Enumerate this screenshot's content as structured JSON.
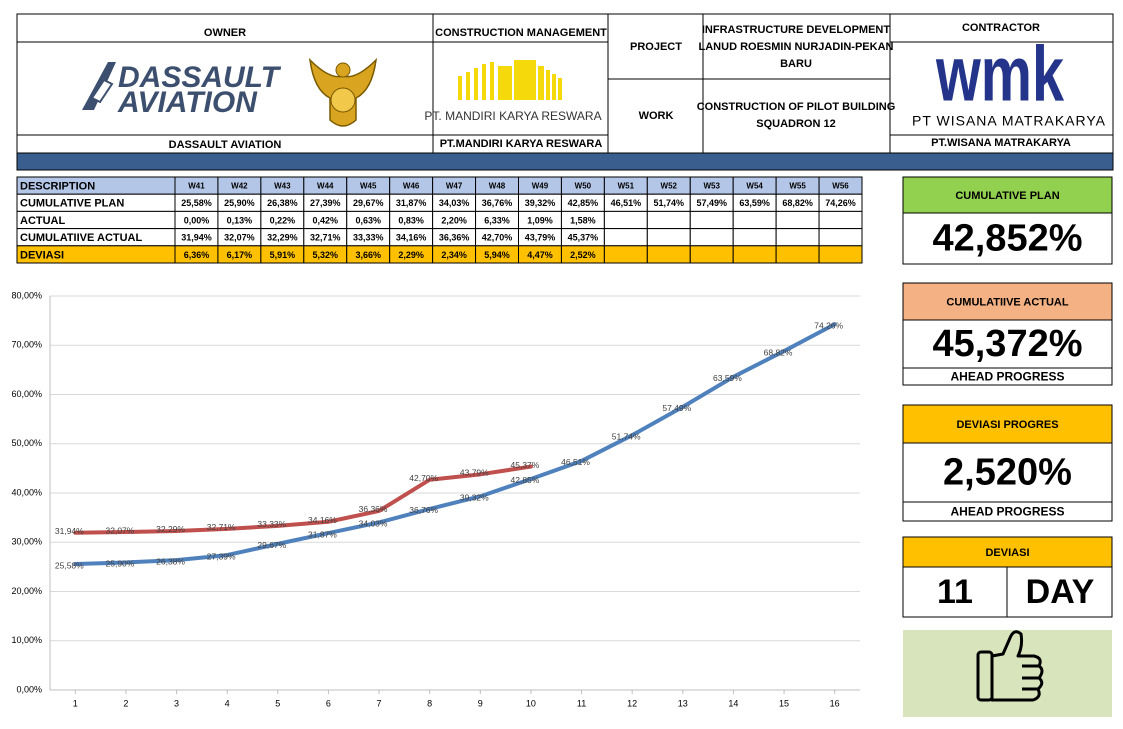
{
  "header": {
    "owner_label": "OWNER",
    "owner_logo": [
      "DASSAULT",
      "AVIATION"
    ],
    "owner_name": "DASSAULT AVIATION",
    "cm_label": "CONSTRUCTION MANAGEMENT",
    "cm_logo": "PT. MANDIRI KARYA RESWARA",
    "cm_name": "PT.MANDIRI KARYA RESWARA",
    "project_label": "PROJECT",
    "project": [
      "INFRASTRUCTURE DEVELOPMENT",
      "LANUD ROESMIN NURJADIN-PEKAN",
      "BARU"
    ],
    "work_label": "WORK",
    "work": [
      "CONSTRUCTION OF PILOT BUILDING",
      "SQUADRON 12"
    ],
    "contractor_label": "CONTRACTOR",
    "contractor_logo": "wmk",
    "contractor_logo_name": "PT WISANA MATRAKARYA",
    "contractor_name": "PT.WISANA MATRAKARYA"
  },
  "table": {
    "columns": [
      "DESCRIPTION",
      "W41",
      "W42",
      "W43",
      "W44",
      "W45",
      "W46",
      "W47",
      "W48",
      "W49",
      "W50",
      "W51",
      "W52",
      "W53",
      "W54",
      "W55",
      "W56"
    ],
    "rows": [
      [
        "CUMULATIVE PLAN",
        "25,58%",
        "25,90%",
        "26,38%",
        "27,39%",
        "29,67%",
        "31,87%",
        "34,03%",
        "36,76%",
        "39,32%",
        "42,85%",
        "46,51%",
        "51,74%",
        "57,49%",
        "63,59%",
        "68,82%",
        "74,26%"
      ],
      [
        "ACTUAL",
        "0,00%",
        "0,13%",
        "0,22%",
        "0,42%",
        "0,63%",
        "0,83%",
        "2,20%",
        "6,33%",
        "1,09%",
        "1,58%"
      ],
      [
        "CUMULATIIVE ACTUAL",
        "31,94%",
        "32,07%",
        "32,29%",
        "32,71%",
        "33,33%",
        "34,16%",
        "36,36%",
        "42,70%",
        "43,79%",
        "45,37%"
      ],
      [
        "DEVIASI",
        "6,36%",
        "6,17%",
        "5,91%",
        "5,32%",
        "3,66%",
        "2,29%",
        "2,34%",
        "5,94%",
        "4,47%",
        "2,52%"
      ]
    ]
  },
  "chart_data": {
    "type": "line",
    "x": [
      1,
      2,
      3,
      4,
      5,
      6,
      7,
      8,
      9,
      10,
      11,
      12,
      13,
      14,
      15,
      16
    ],
    "xlim": [
      0.5,
      16.5
    ],
    "xticks": [
      1,
      2,
      3,
      4,
      5,
      6,
      7,
      8,
      9,
      10,
      11,
      12,
      13,
      14,
      15,
      16
    ],
    "ylim": [
      0,
      80
    ],
    "yticks": [
      {
        "value": 0,
        "label": "0,00%"
      },
      {
        "value": 10,
        "label": "10,00%"
      },
      {
        "value": 20,
        "label": "20,00%"
      },
      {
        "value": 30,
        "label": "30,00%"
      },
      {
        "value": 40,
        "label": "40,00%"
      },
      {
        "value": 50,
        "label": "50,00%"
      },
      {
        "value": 60,
        "label": "60,00%"
      },
      {
        "value": 70,
        "label": "70,00%"
      },
      {
        "value": 80,
        "label": "80,00%"
      }
    ],
    "grid": true,
    "series": [
      {
        "color": "#4f81bd",
        "values": [
          25.58,
          25.9,
          26.38,
          27.39,
          29.67,
          31.87,
          34.03,
          36.76,
          39.32,
          42.85,
          46.51,
          51.74,
          57.49,
          63.59,
          68.82,
          74.26
        ],
        "value_labels": [
          "25,58%",
          "25,90%",
          "26,38%",
          "27,39%",
          "29,67%",
          "31,87%",
          "34,03%",
          "36,76%",
          "39,32%",
          "42,85%",
          "46,51%",
          "51,74%",
          "57,49%",
          "63,59%",
          "68,82%",
          "74,26%"
        ]
      },
      {
        "color": "#c0504d",
        "values": [
          31.94,
          32.07,
          32.29,
          32.71,
          33.33,
          34.16,
          36.36,
          42.7,
          43.79,
          45.37,
          null,
          null,
          null,
          null,
          null,
          null
        ],
        "value_labels": [
          "31,94%",
          "32,07%",
          "32,29%",
          "32,71%",
          "33,33%",
          "34,16%",
          "36,36%",
          "42,70%",
          "43,79%",
          "45,37%",
          null,
          null,
          null,
          null,
          null,
          null
        ]
      }
    ]
  },
  "kpis": [
    {
      "title": "CUMULATIVE PLAN",
      "value": "42,852%"
    },
    {
      "title": "CUMULATIIVE ACTUAL",
      "value": "45,372%",
      "note": "AHEAD PROGRESS"
    },
    {
      "title": "DEVIASI PROGRES",
      "value": "2,520%",
      "note": "AHEAD PROGRESS"
    },
    {
      "title": "DEVIASI",
      "value": "11",
      "unit": "DAY"
    }
  ]
}
